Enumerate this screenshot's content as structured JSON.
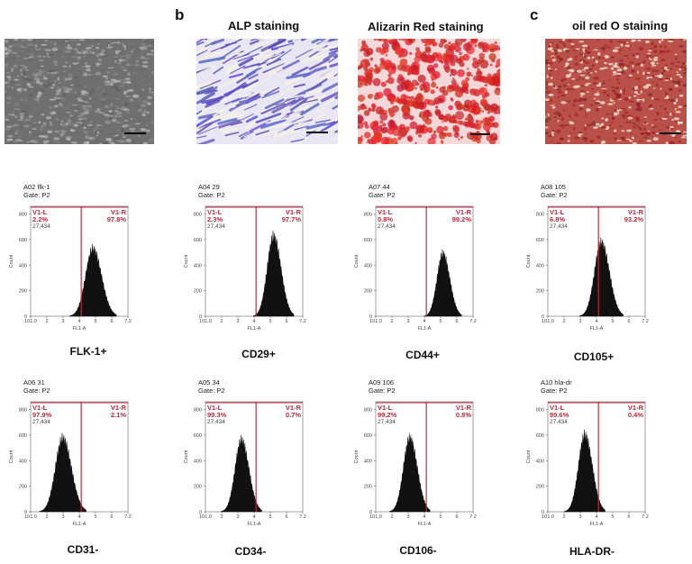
{
  "panels": {
    "b_letter": "b",
    "c_letter": "c"
  },
  "images": [
    {
      "id": "phase-contrast",
      "title": "",
      "color": "#8a8a8a"
    },
    {
      "id": "alp",
      "title": "ALP staining",
      "color": "#6a62b8"
    },
    {
      "id": "alizarin",
      "title": "Alizarin Red staining",
      "color": "#d92a2a"
    },
    {
      "id": "oilred",
      "title": "oil red O staining",
      "color": "#a8322e"
    }
  ],
  "chart_data": [
    {
      "type": "histogram",
      "sample": "A02 flk-1",
      "gate": "Gate: P2",
      "left_label": "V1-L",
      "left_pct": "2.2%",
      "right_label": "V1-R",
      "right_pct": "97.8%",
      "events": "27,434",
      "peak": 0.64,
      "width": 0.075,
      "height": 0.66,
      "marker": "FLK-1+",
      "xlabel": "FL1-A",
      "ylabel": "Count"
    },
    {
      "type": "histogram",
      "sample": "A04 29",
      "gate": "Gate: P2",
      "left_label": "V1-L",
      "left_pct": "2.3%",
      "right_label": "V1-R",
      "right_pct": "97.7%",
      "events": "27,434",
      "peak": 0.7,
      "width": 0.065,
      "height": 0.78,
      "marker": "CD29+",
      "xlabel": "FL1-A",
      "ylabel": "Count"
    },
    {
      "type": "histogram",
      "sample": "A07 44",
      "gate": "Gate: P2",
      "left_label": "V1-L",
      "left_pct": "0.8%",
      "right_label": "V1-R",
      "right_pct": "99.2%",
      "events": "27,434",
      "peak": 0.69,
      "width": 0.06,
      "height": 0.61,
      "marker": "CD44+",
      "xlabel": "FL1-A",
      "ylabel": "Count"
    },
    {
      "type": "histogram",
      "sample": "A08 105",
      "gate": "Gate: P2",
      "left_label": "V1-L",
      "left_pct": "6.8%",
      "right_label": "V1-R",
      "right_pct": "93.2%",
      "events": "27,434",
      "peak": 0.55,
      "width": 0.07,
      "height": 0.72,
      "marker": "CD105+",
      "xlabel": "FL1-A",
      "ylabel": "Count"
    },
    {
      "type": "histogram",
      "sample": "A06 31",
      "gate": "Gate: P2",
      "left_label": "V1-L",
      "left_pct": "97.9%",
      "right_label": "V1-R",
      "right_pct": "2.1%",
      "events": "27,434",
      "peak": 0.33,
      "width": 0.075,
      "height": 0.72,
      "marker": "CD31-",
      "xlabel": "FL1-A",
      "ylabel": "Count"
    },
    {
      "type": "histogram",
      "sample": "A05 34",
      "gate": "Gate: P2",
      "left_label": "V1-L",
      "left_pct": "99.3%",
      "right_label": "V1-R",
      "right_pct": "0.7%",
      "events": "27,434",
      "peak": 0.37,
      "width": 0.065,
      "height": 0.7,
      "marker": "CD34-",
      "xlabel": "FL1-A",
      "ylabel": "Count"
    },
    {
      "type": "histogram",
      "sample": "A09 106",
      "gate": "Gate: P2",
      "left_label": "V1-L",
      "left_pct": "99.2%",
      "right_label": "V1-R",
      "right_pct": "0.8%",
      "events": "27,434",
      "peak": 0.35,
      "width": 0.065,
      "height": 0.72,
      "marker": "CD106-",
      "xlabel": "FL1-A",
      "ylabel": "Count"
    },
    {
      "type": "histogram",
      "sample": "A10 hla-dr",
      "gate": "Gate: P2",
      "left_label": "V1-L",
      "left_pct": "99.6%",
      "right_label": "V1-R",
      "right_pct": "0.4%",
      "events": "27,434",
      "peak": 0.38,
      "width": 0.065,
      "height": 0.75,
      "marker": "HLA-DR-",
      "xlabel": "FL1-A",
      "ylabel": "Count"
    }
  ],
  "axis": {
    "x_ticks": [
      "1.0",
      "2",
      "3",
      "4",
      "5",
      "6",
      "7.2"
    ],
    "y_ticks": [
      "0",
      "200",
      "400",
      "600",
      "800"
    ]
  }
}
